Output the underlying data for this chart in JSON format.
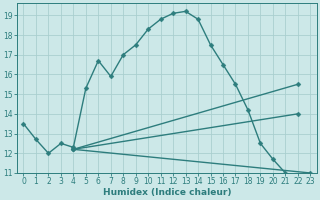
{
  "xlabel": "Humidex (Indice chaleur)",
  "bg_color": "#cce8e8",
  "grid_color": "#aacfcf",
  "line_color": "#2d7d7d",
  "xlim": [
    -0.5,
    23.5
  ],
  "ylim": [
    11,
    19.6
  ],
  "yticks": [
    11,
    12,
    13,
    14,
    15,
    16,
    17,
    18,
    19
  ],
  "xticks": [
    0,
    1,
    2,
    3,
    4,
    5,
    6,
    7,
    8,
    9,
    10,
    11,
    12,
    13,
    14,
    15,
    16,
    17,
    18,
    19,
    20,
    21,
    22,
    23
  ],
  "series": [
    {
      "x": [
        0,
        1,
        2,
        3,
        4,
        5,
        6,
        7,
        8,
        9,
        10,
        11,
        12,
        13,
        14,
        15,
        16,
        17,
        18,
        19,
        20,
        21
      ],
      "y": [
        13.5,
        12.7,
        12.0,
        12.5,
        12.3,
        15.3,
        16.7,
        15.9,
        17.0,
        17.5,
        18.3,
        18.8,
        19.1,
        19.2,
        18.8,
        17.5,
        16.5,
        15.5,
        14.2,
        12.5,
        11.7,
        11.0
      ]
    },
    {
      "x": [
        4,
        22
      ],
      "y": [
        12.2,
        15.5
      ]
    },
    {
      "x": [
        4,
        22
      ],
      "y": [
        12.2,
        14.0
      ]
    },
    {
      "x": [
        4,
        23
      ],
      "y": [
        12.2,
        11.0
      ]
    }
  ],
  "xlabel_fontsize": 6.5,
  "tick_fontsize": 5.5,
  "linewidth": 1.0,
  "markersize": 2.5
}
